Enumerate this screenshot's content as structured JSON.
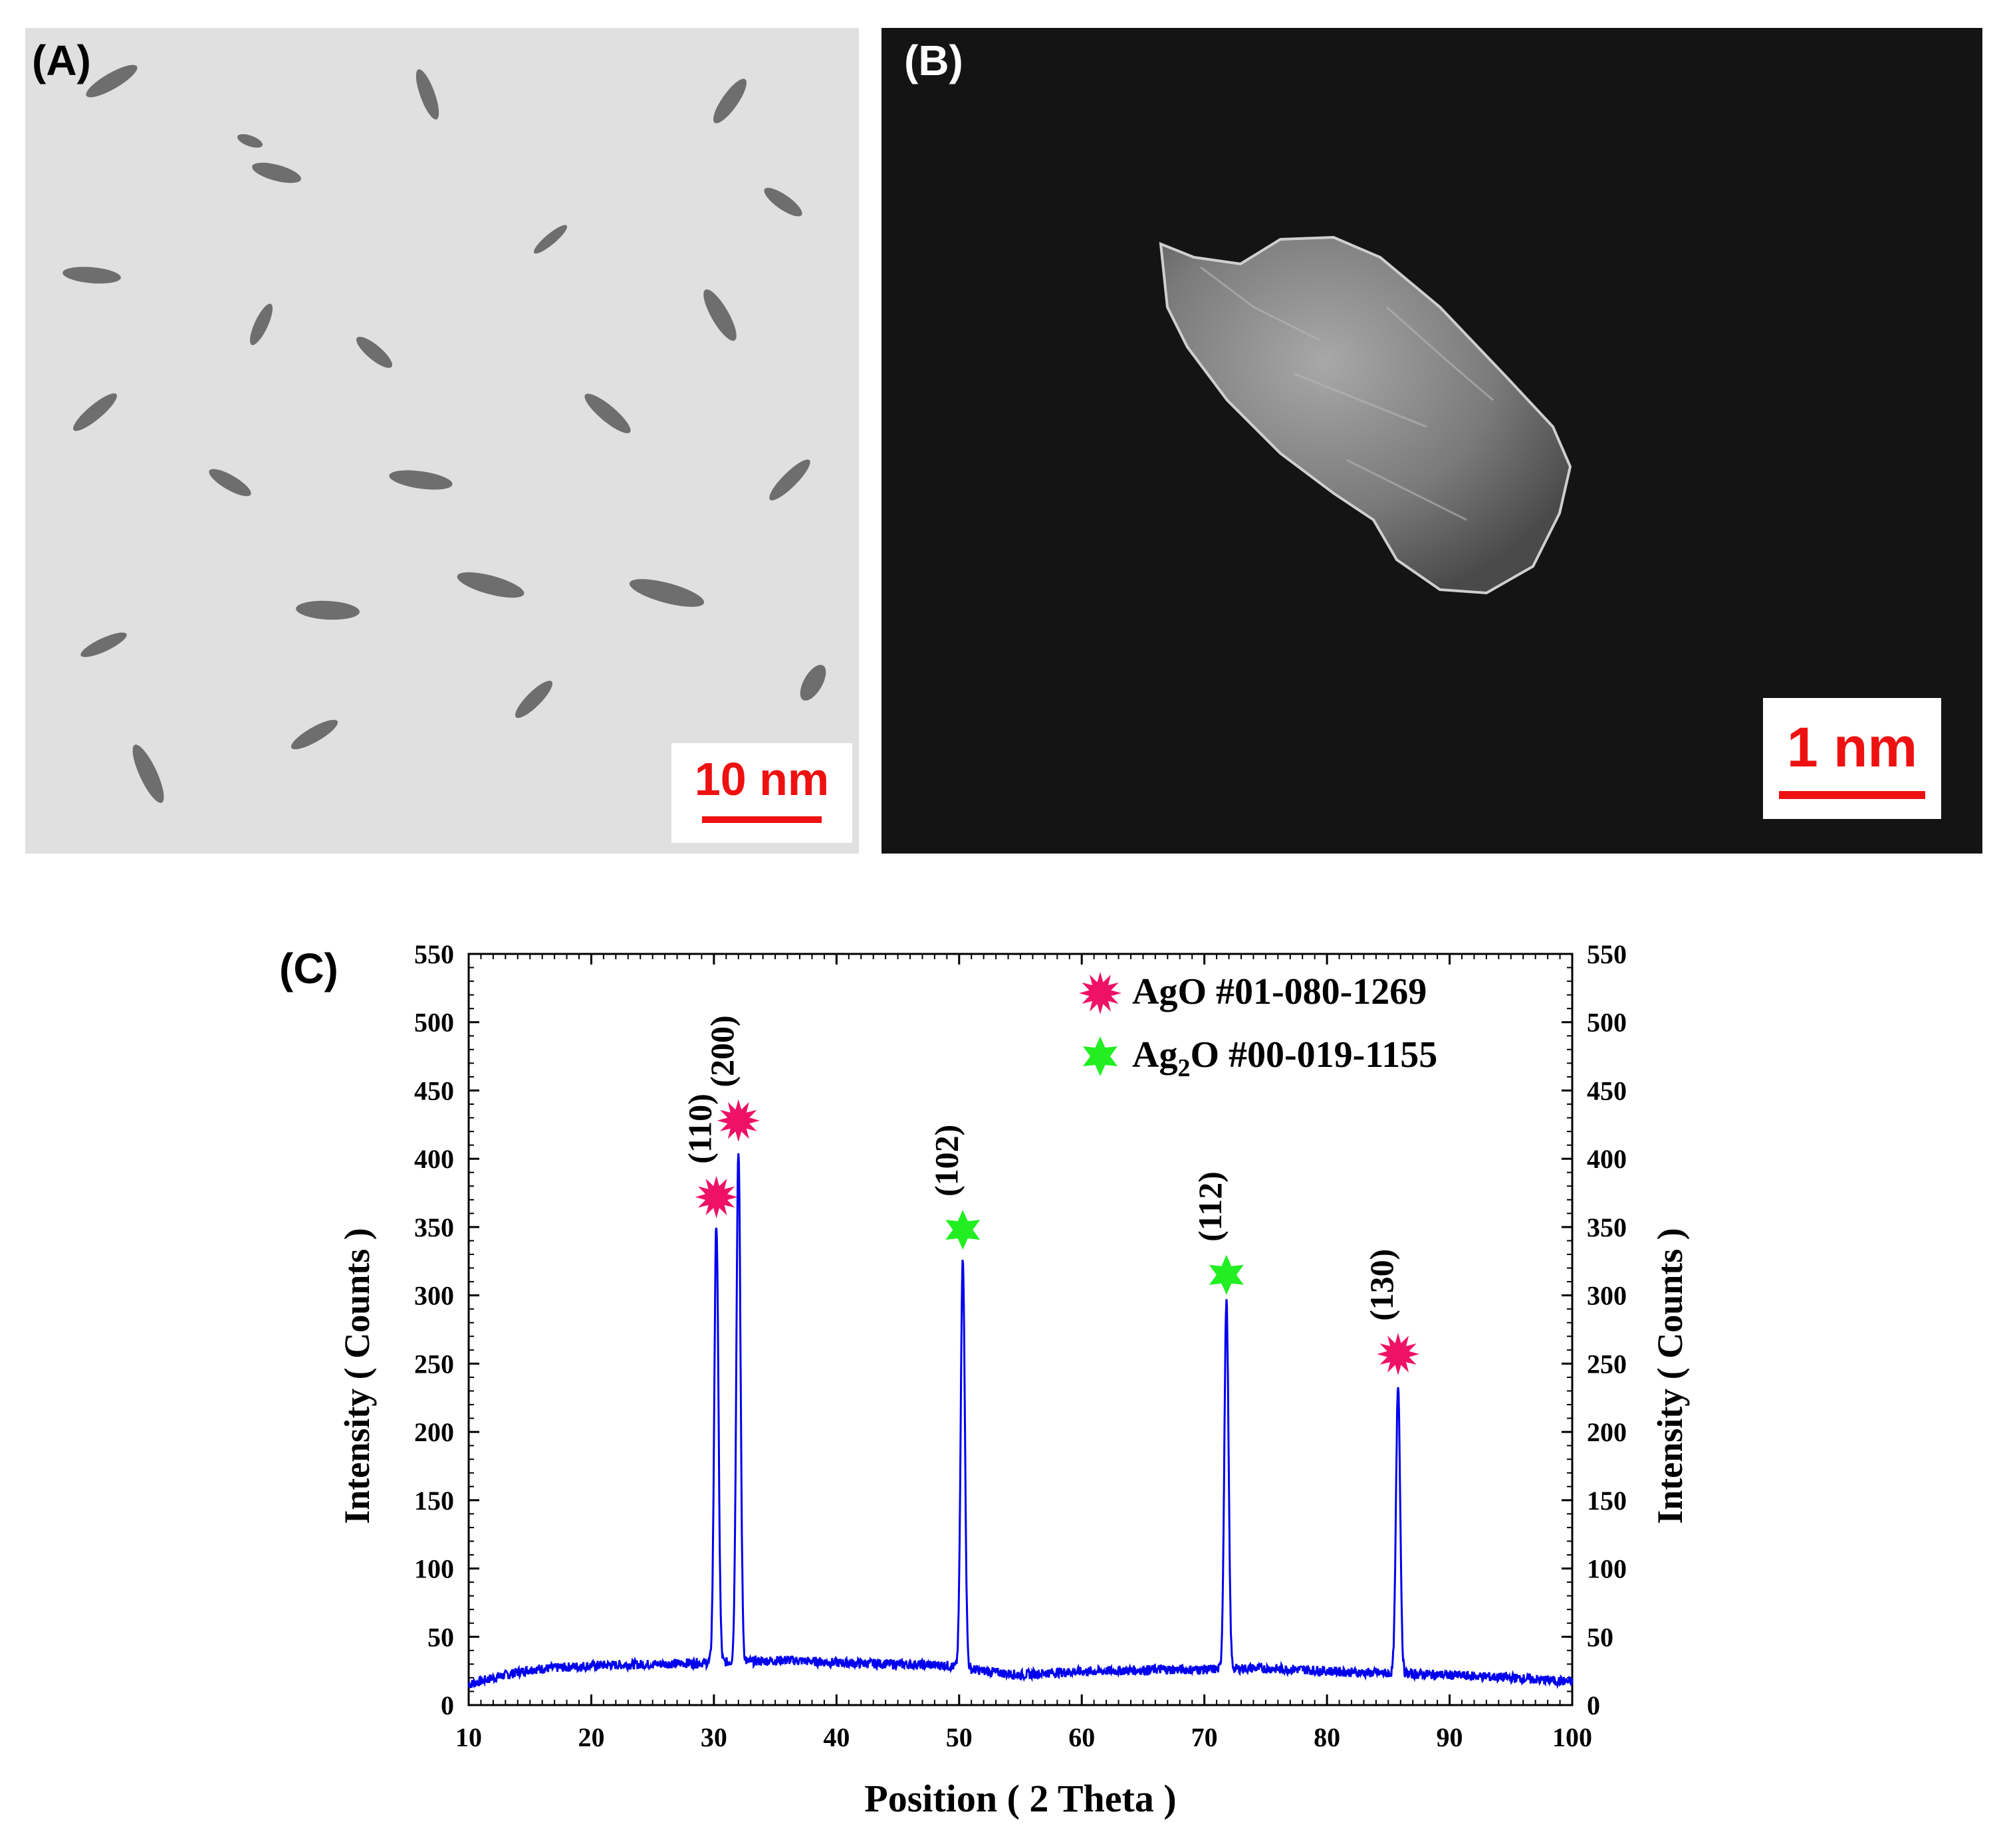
{
  "panel_a": {
    "label": "(A)",
    "scale_label": "10 nm"
  },
  "panel_b": {
    "label": "(B)",
    "scale_label": "1 nm"
  },
  "panel_c": {
    "label": "(C)"
  },
  "colors": {
    "line": "#0000ee",
    "ago_marker": "#ee1166",
    "ag2o_marker": "#22ee22",
    "scale": "#ee1111"
  },
  "chart_data": {
    "type": "line",
    "xlabel": "Position ( 2 Theta )",
    "ylabel": "Intensity ( Counts )",
    "ylabel_right": "Intensity ( Counts )",
    "xlim": [
      10,
      100
    ],
    "ylim": [
      0,
      550
    ],
    "xticks": [
      10,
      20,
      30,
      40,
      50,
      60,
      70,
      80,
      90,
      100
    ],
    "yticks": [
      0,
      50,
      100,
      150,
      200,
      250,
      300,
      350,
      400,
      450,
      500,
      550
    ],
    "grid": false,
    "legend_position": "top-right",
    "legend": [
      {
        "marker": "ago",
        "text_main": "AgO #01-080-1269",
        "text_sub": ""
      },
      {
        "marker": "ag2o",
        "text_pre": "Ag",
        "text_sub": "2",
        "text_post": "O #00-019-1155"
      }
    ],
    "background": [
      [
        10,
        15
      ],
      [
        12,
        20
      ],
      [
        15,
        26
      ],
      [
        20,
        29
      ],
      [
        25,
        30
      ],
      [
        29,
        31
      ],
      [
        33,
        32
      ],
      [
        36,
        33
      ],
      [
        40,
        31
      ],
      [
        45,
        30
      ],
      [
        49,
        29
      ],
      [
        52,
        25
      ],
      [
        55,
        22
      ],
      [
        58,
        24
      ],
      [
        62,
        25
      ],
      [
        66,
        26
      ],
      [
        70,
        26
      ],
      [
        74,
        27
      ],
      [
        78,
        26
      ],
      [
        82,
        24
      ],
      [
        86,
        23
      ],
      [
        90,
        22
      ],
      [
        95,
        20
      ],
      [
        100,
        17
      ]
    ],
    "peaks": [
      {
        "label": "(110)",
        "x": 30.2,
        "y": 353,
        "phase": "ago",
        "marker_y": 372
      },
      {
        "label": "(200)",
        "x": 32.0,
        "y": 407,
        "phase": "ago",
        "marker_y": 428
      },
      {
        "label": "(102)",
        "x": 50.3,
        "y": 328,
        "phase": "ag2o",
        "marker_y": 348
      },
      {
        "label": "(112)",
        "x": 71.8,
        "y": 297,
        "phase": "ag2o",
        "marker_y": 315
      },
      {
        "label": "(130)",
        "x": 85.8,
        "y": 235,
        "phase": "ago",
        "marker_y": 257
      }
    ]
  }
}
